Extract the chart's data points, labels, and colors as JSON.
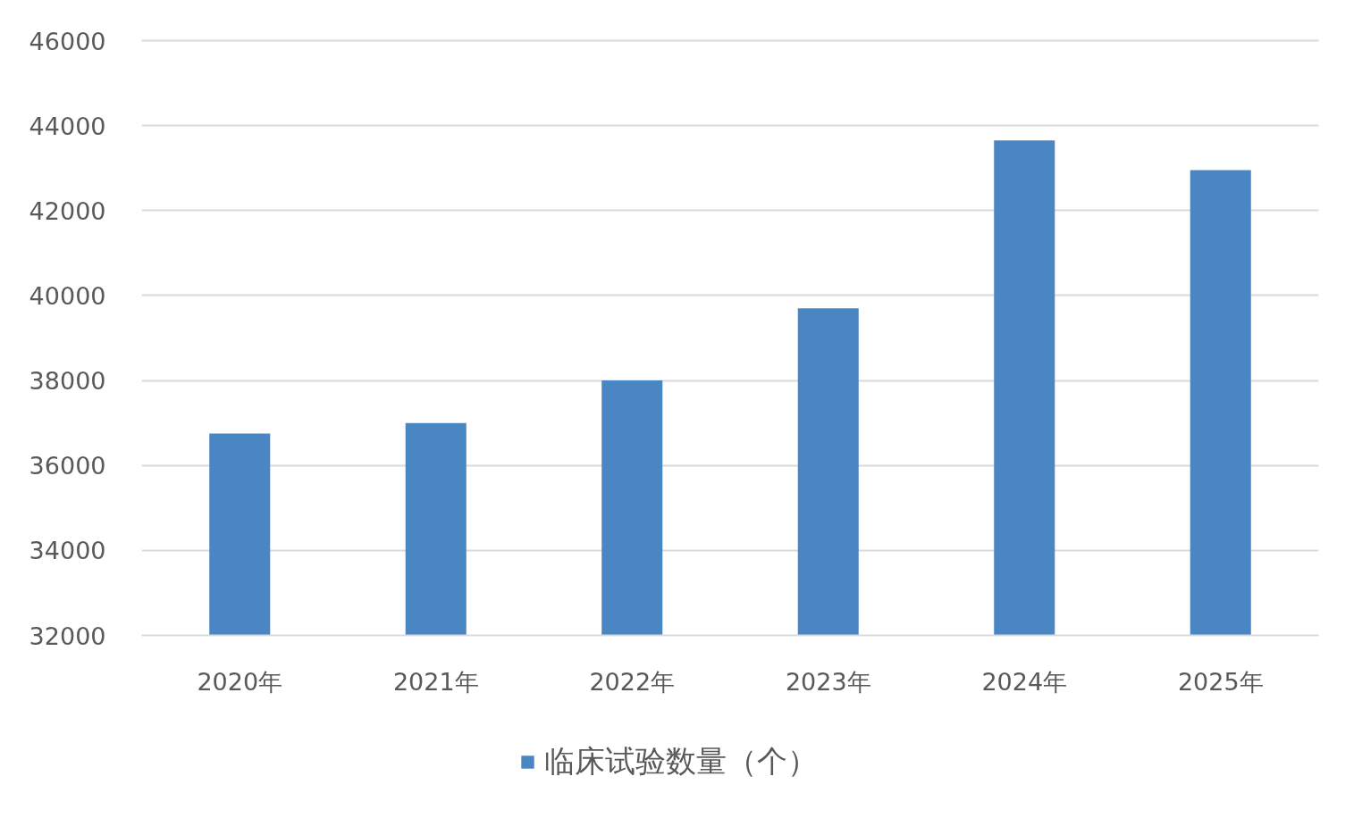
{
  "chart_data": {
    "type": "bar",
    "categories": [
      "2020年",
      "2021年",
      "2022年",
      "2023年",
      "2024年",
      "2025年"
    ],
    "series": [
      {
        "name": "临床试验数量（个）",
        "color": "#4a86c4",
        "values": [
          36750,
          37000,
          38000,
          39700,
          43650,
          42950
        ]
      }
    ],
    "ylim": [
      32000,
      46000
    ],
    "yticks": [
      32000,
      34000,
      36000,
      38000,
      40000,
      42000,
      44000,
      46000
    ],
    "grid": "y",
    "legend": "bottom"
  }
}
